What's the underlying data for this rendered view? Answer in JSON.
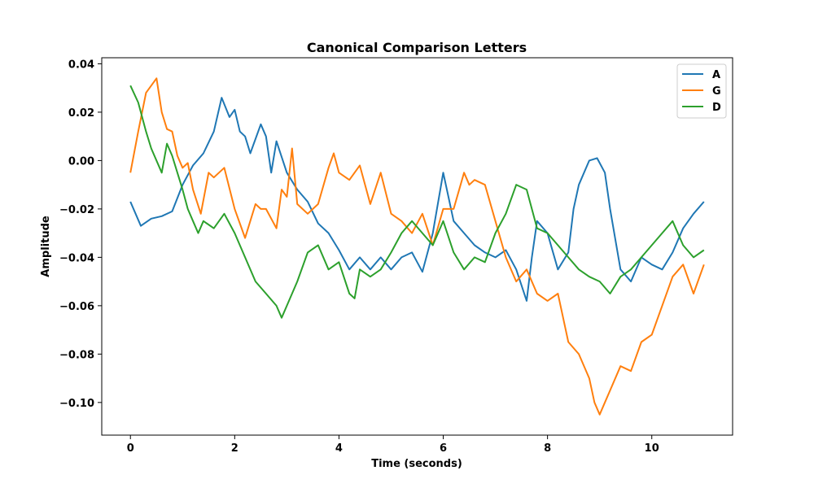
{
  "chart_data": {
    "type": "line",
    "title": "Canonical Comparison Letters",
    "xlabel": "Time (seconds)",
    "ylabel": "Amplitude",
    "xlim": [
      -0.55,
      11.55
    ],
    "ylim": [
      -0.1135,
      0.0425
    ],
    "xticks": [
      0,
      2,
      4,
      6,
      8,
      10
    ],
    "xtick_labels": [
      "0",
      "2",
      "4",
      "6",
      "8",
      "10"
    ],
    "yticks": [
      0.04,
      0.02,
      0.0,
      -0.02,
      -0.04,
      -0.06,
      -0.08,
      -0.1
    ],
    "ytick_labels": [
      "0.04",
      "0.02",
      "0.00",
      "−0.02",
      "−0.04",
      "−0.06",
      "−0.08",
      "−0.10"
    ],
    "grid": false,
    "legend_position": "top-right",
    "series": [
      {
        "name": "A",
        "color": "#1f77b4",
        "x": [
          0,
          0.2,
          0.4,
          0.6,
          0.8,
          1.0,
          1.2,
          1.4,
          1.6,
          1.75,
          1.9,
          2.0,
          2.1,
          2.2,
          2.3,
          2.5,
          2.6,
          2.7,
          2.8,
          3.0,
          3.2,
          3.4,
          3.6,
          3.8,
          4.0,
          4.2,
          4.4,
          4.6,
          4.8,
          5.0,
          5.2,
          5.4,
          5.6,
          5.8,
          6.0,
          6.1,
          6.2,
          6.4,
          6.6,
          6.8,
          7.0,
          7.2,
          7.4,
          7.6,
          7.7,
          7.8,
          8.0,
          8.2,
          8.4,
          8.5,
          8.6,
          8.8,
          8.95,
          9.1,
          9.2,
          9.4,
          9.6,
          9.8,
          10.0,
          10.2,
          10.4,
          10.6,
          10.8,
          11.0
        ],
        "y": [
          -0.017,
          -0.027,
          -0.024,
          -0.023,
          -0.021,
          -0.01,
          -0.002,
          0.003,
          0.012,
          0.026,
          0.018,
          0.021,
          0.012,
          0.01,
          0.003,
          0.015,
          0.01,
          -0.005,
          0.008,
          -0.005,
          -0.012,
          -0.017,
          -0.026,
          -0.03,
          -0.037,
          -0.045,
          -0.04,
          -0.045,
          -0.04,
          -0.045,
          -0.04,
          -0.038,
          -0.046,
          -0.03,
          -0.005,
          -0.015,
          -0.025,
          -0.03,
          -0.035,
          -0.038,
          -0.04,
          -0.037,
          -0.045,
          -0.058,
          -0.04,
          -0.025,
          -0.03,
          -0.045,
          -0.038,
          -0.02,
          -0.01,
          0.0,
          0.001,
          -0.005,
          -0.02,
          -0.045,
          -0.05,
          -0.04,
          -0.043,
          -0.045,
          -0.038,
          -0.028,
          -0.022,
          -0.017
        ]
      },
      {
        "name": "G",
        "color": "#ff7f0e",
        "x": [
          0,
          0.15,
          0.3,
          0.5,
          0.6,
          0.7,
          0.8,
          0.9,
          1.0,
          1.1,
          1.2,
          1.35,
          1.5,
          1.6,
          1.8,
          2.0,
          2.2,
          2.4,
          2.5,
          2.6,
          2.8,
          2.9,
          3.0,
          3.1,
          3.2,
          3.4,
          3.6,
          3.8,
          3.9,
          4.0,
          4.2,
          4.4,
          4.6,
          4.8,
          5.0,
          5.2,
          5.4,
          5.6,
          5.8,
          6.0,
          6.2,
          6.4,
          6.5,
          6.6,
          6.8,
          7.0,
          7.2,
          7.4,
          7.6,
          7.8,
          8.0,
          8.2,
          8.4,
          8.6,
          8.8,
          8.9,
          9.0,
          9.1,
          9.2,
          9.4,
          9.6,
          9.8,
          10.0,
          10.2,
          10.4,
          10.6,
          10.8,
          11.0
        ],
        "y": [
          -0.005,
          0.012,
          0.028,
          0.034,
          0.02,
          0.013,
          0.012,
          0.002,
          -0.003,
          -0.001,
          -0.012,
          -0.022,
          -0.005,
          -0.007,
          -0.003,
          -0.02,
          -0.032,
          -0.018,
          -0.02,
          -0.02,
          -0.028,
          -0.012,
          -0.015,
          0.005,
          -0.018,
          -0.022,
          -0.018,
          -0.003,
          0.003,
          -0.005,
          -0.008,
          -0.002,
          -0.018,
          -0.005,
          -0.022,
          -0.025,
          -0.03,
          -0.022,
          -0.035,
          -0.02,
          -0.02,
          -0.005,
          -0.01,
          -0.008,
          -0.01,
          -0.025,
          -0.04,
          -0.05,
          -0.045,
          -0.055,
          -0.058,
          -0.055,
          -0.075,
          -0.08,
          -0.09,
          -0.1,
          -0.105,
          -0.1,
          -0.095,
          -0.085,
          -0.087,
          -0.075,
          -0.072,
          -0.06,
          -0.048,
          -0.043,
          -0.055,
          -0.043
        ]
      },
      {
        "name": "D",
        "color": "#2ca02c",
        "x": [
          0,
          0.15,
          0.3,
          0.4,
          0.6,
          0.7,
          0.8,
          0.9,
          1.0,
          1.1,
          1.2,
          1.3,
          1.4,
          1.6,
          1.8,
          2.0,
          2.2,
          2.4,
          2.6,
          2.8,
          2.9,
          3.0,
          3.2,
          3.4,
          3.6,
          3.8,
          4.0,
          4.2,
          4.3,
          4.4,
          4.6,
          4.8,
          5.0,
          5.2,
          5.4,
          5.6,
          5.8,
          6.0,
          6.2,
          6.4,
          6.6,
          6.8,
          7.0,
          7.2,
          7.4,
          7.6,
          7.8,
          8.0,
          8.2,
          8.4,
          8.6,
          8.8,
          9.0,
          9.2,
          9.4,
          9.6,
          9.8,
          10.0,
          10.2,
          10.4,
          10.6,
          10.8,
          11.0
        ],
        "y": [
          0.031,
          0.024,
          0.012,
          0.005,
          -0.005,
          0.007,
          0.002,
          -0.005,
          -0.012,
          -0.02,
          -0.025,
          -0.03,
          -0.025,
          -0.028,
          -0.022,
          -0.03,
          -0.04,
          -0.05,
          -0.055,
          -0.06,
          -0.065,
          -0.06,
          -0.05,
          -0.038,
          -0.035,
          -0.045,
          -0.042,
          -0.055,
          -0.057,
          -0.045,
          -0.048,
          -0.045,
          -0.038,
          -0.03,
          -0.025,
          -0.03,
          -0.035,
          -0.025,
          -0.038,
          -0.045,
          -0.04,
          -0.042,
          -0.03,
          -0.022,
          -0.01,
          -0.012,
          -0.028,
          -0.03,
          -0.035,
          -0.04,
          -0.045,
          -0.048,
          -0.05,
          -0.055,
          -0.048,
          -0.045,
          -0.04,
          -0.035,
          -0.03,
          -0.025,
          -0.035,
          -0.04,
          -0.037
        ]
      }
    ]
  }
}
